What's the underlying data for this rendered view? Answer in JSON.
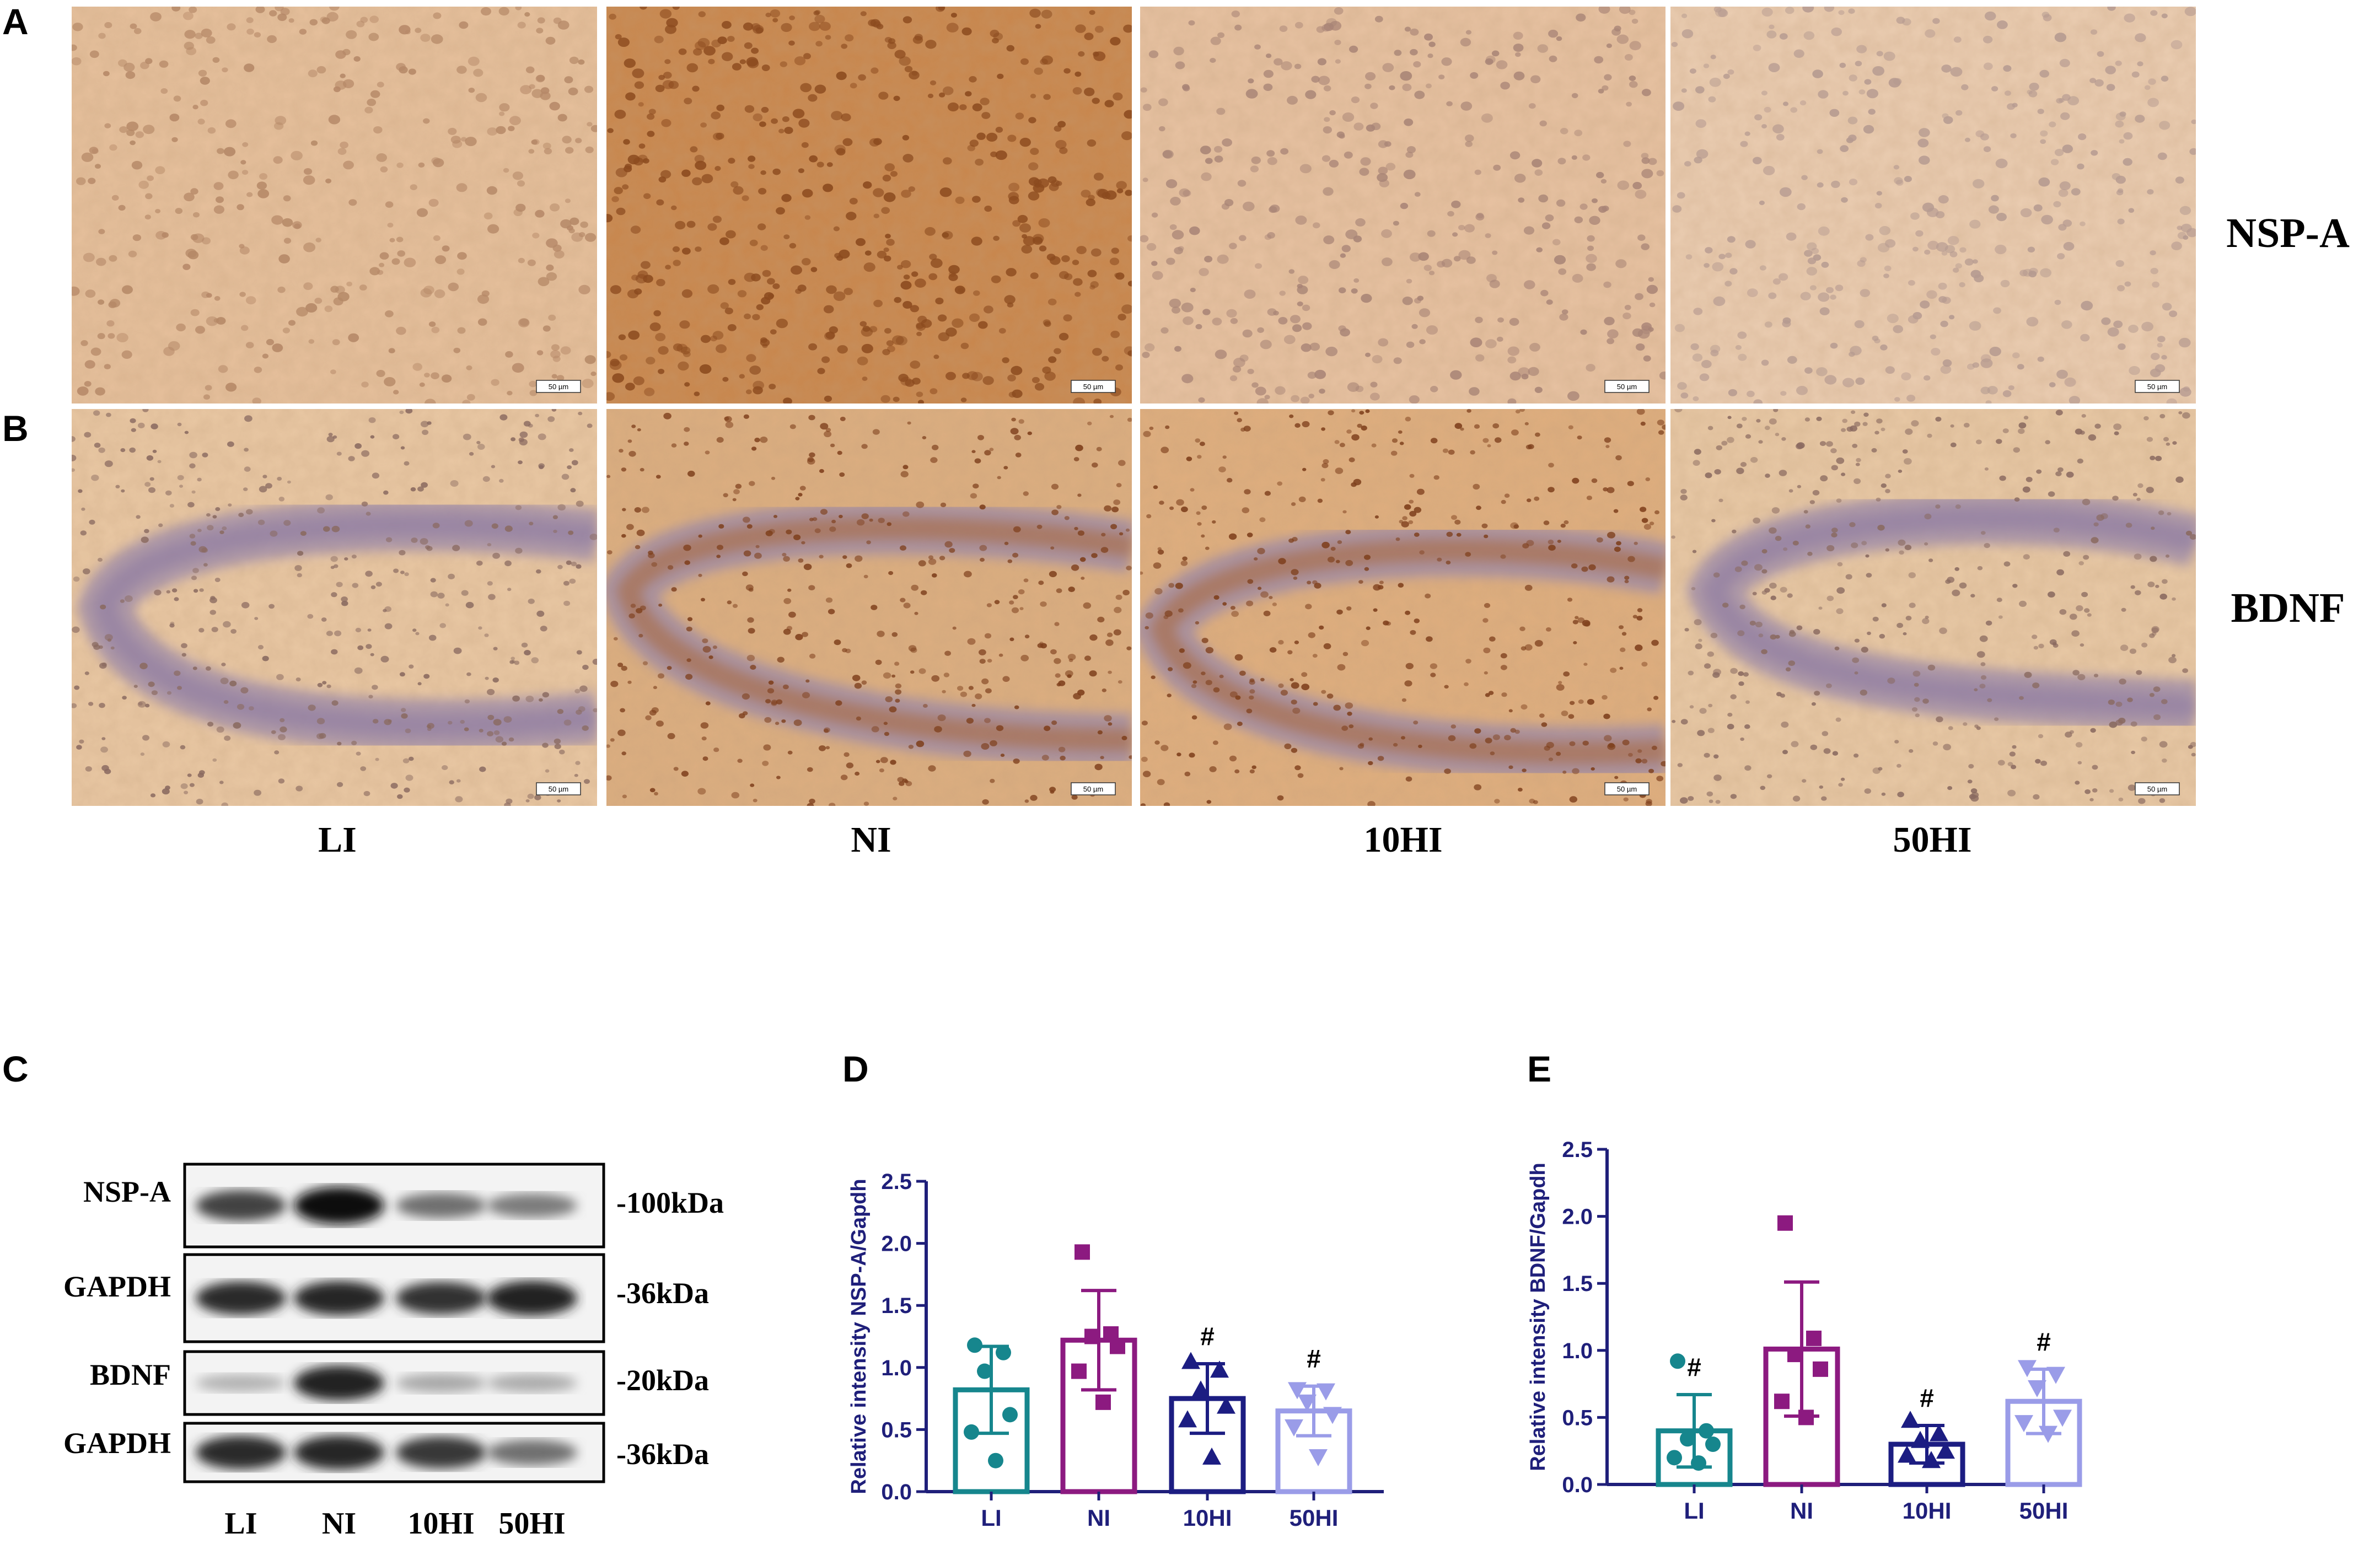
{
  "panels": {
    "a": "A",
    "b": "B",
    "c": "C",
    "d": "D",
    "e": "E"
  },
  "rows": {
    "nspa": "NSP-A",
    "bdnf": "BDNF"
  },
  "groups": [
    "LI",
    "NI",
    "10HI",
    "50HI"
  ],
  "scale_bar_label": "50 µm",
  "micrographs": {
    "nspa_tints": [
      "#e6c09c",
      "#c8864c",
      "#e7c2a2",
      "#ebcdb2"
    ],
    "bdnf_tints": [
      "#e9c8a4",
      "#dcae80",
      "#dfae7e",
      "#e8c9a6"
    ],
    "nucleus_colors": [
      "#b58867",
      "#8b4a1e",
      "#a88476",
      "#b59a90"
    ],
    "layer_color": "#9a88a8"
  },
  "blot": {
    "rows": [
      {
        "name": "NSP-A",
        "size": "-100kDa",
        "intensity": [
          0.75,
          1.0,
          0.55,
          0.5
        ]
      },
      {
        "name": "GAPDH",
        "size": "-36kDa",
        "intensity": [
          0.85,
          0.88,
          0.82,
          0.9
        ]
      },
      {
        "name": "BDNF",
        "size": "-20kDa",
        "intensity": [
          0.25,
          0.9,
          0.3,
          0.28
        ]
      },
      {
        "name": "GAPDH",
        "size": "-36kDa",
        "intensity": [
          0.85,
          0.88,
          0.8,
          0.55
        ]
      }
    ]
  },
  "colors": {
    "axis": "#1f1f7a",
    "LI": "#16868d",
    "NI": "#8c1a80",
    "10HI": "#1c1d82",
    "50HI": "#9a9ce8"
  },
  "chart_data": [
    {
      "panel": "D",
      "type": "bar",
      "ylabel": "Relative intensity NSP-A/Gapdh",
      "categories": [
        "LI",
        "NI",
        "10HI",
        "50HI"
      ],
      "ylim": [
        0,
        2.5
      ],
      "yticks": [
        0.0,
        0.5,
        1.0,
        1.5,
        2.0,
        2.5
      ],
      "values": [
        0.82,
        1.22,
        0.75,
        0.65
      ],
      "errors": [
        0.35,
        0.4,
        0.28,
        0.2
      ],
      "markers": [
        "circle",
        "square",
        "triangle",
        "triangle-down"
      ],
      "points": [
        [
          1.18,
          1.12,
          0.97,
          0.62,
          0.48,
          0.25
        ],
        [
          1.93,
          1.27,
          1.25,
          1.17,
          0.97,
          0.72
        ],
        [
          1.05,
          0.98,
          0.82,
          0.69,
          0.58,
          0.28
        ],
        [
          0.82,
          0.81,
          0.72,
          0.62,
          0.52,
          0.28
        ]
      ],
      "annotations": [
        "",
        "",
        "#",
        "#"
      ]
    },
    {
      "panel": "E",
      "type": "bar",
      "ylabel": "Relative intensity BDNF/Gapdh",
      "categories": [
        "LI",
        "NI",
        "10HI",
        "50HI"
      ],
      "ylim": [
        0,
        2.5
      ],
      "yticks": [
        0.0,
        0.5,
        1.0,
        1.5,
        2.0,
        2.5
      ],
      "values": [
        0.4,
        1.01,
        0.3,
        0.62
      ],
      "errors": [
        0.27,
        0.5,
        0.14,
        0.24
      ],
      "markers": [
        "circle",
        "square",
        "triangle",
        "triangle-down"
      ],
      "points": [
        [
          0.92,
          0.4,
          0.34,
          0.3,
          0.2,
          0.16
        ],
        [
          1.95,
          1.09,
          0.97,
          0.86,
          0.62,
          0.5
        ],
        [
          0.48,
          0.38,
          0.33,
          0.25,
          0.22,
          0.18
        ],
        [
          0.87,
          0.82,
          0.72,
          0.5,
          0.46,
          0.38
        ]
      ],
      "annotations": [
        "#",
        "",
        "#",
        "#"
      ]
    }
  ]
}
